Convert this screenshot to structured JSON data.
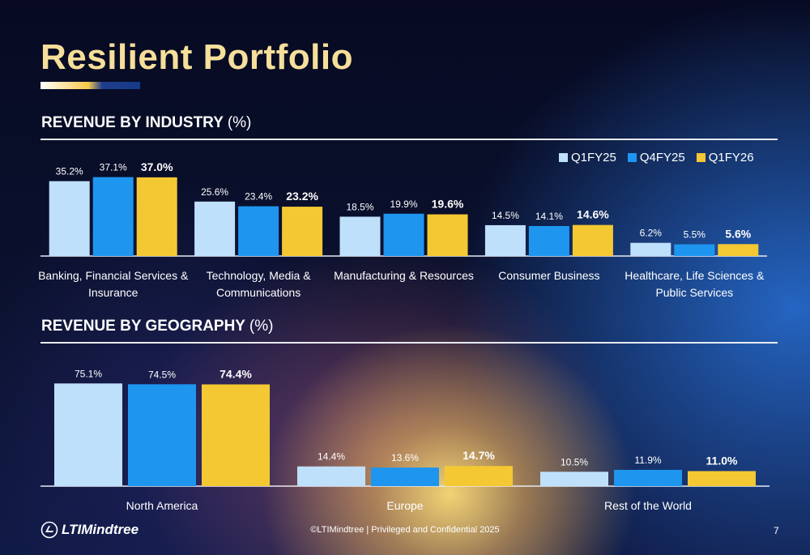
{
  "title": "Resilient Portfolio",
  "colors": {
    "title": "#f6df9a",
    "Q1FY25": "#bfe0fb",
    "Q4FY25": "#1e96f0",
    "Q1FY26": "#f4c832"
  },
  "legend": [
    "Q1FY25",
    "Q4FY25",
    "Q1FY26"
  ],
  "industry_section": {
    "title": "REVENUE BY INDUSTRY",
    "unit": "(%)"
  },
  "geography_section": {
    "title": "REVENUE BY GEOGRAPHY",
    "unit": "(%)"
  },
  "footer": {
    "logo_text": "LTIMindtree",
    "copyright": "©LTIMindtree | Privileged and Confidential 2025",
    "page_number": "7"
  },
  "chart_data": [
    {
      "type": "bar",
      "id": "industry",
      "categories": [
        [
          "Banking, Financial Services &",
          "Insurance"
        ],
        [
          "Technology, Media &",
          "Communications"
        ],
        [
          "Manufacturing & Resources"
        ],
        [
          "Consumer Business"
        ],
        [
          "Healthcare, Life Sciences &",
          "Public Services"
        ]
      ],
      "series": [
        {
          "name": "Q1FY25",
          "values": [
            35.2,
            25.6,
            18.5,
            14.5,
            6.2
          ],
          "labels": [
            "35.2%",
            "25.6%",
            "18.5%",
            "14.5%",
            "6.2%"
          ]
        },
        {
          "name": "Q4FY25",
          "values": [
            37.1,
            23.4,
            19.9,
            14.1,
            5.5
          ],
          "labels": [
            "37.1%",
            "23.4%",
            "19.9%",
            "14.1%",
            "5.5%"
          ]
        },
        {
          "name": "Q1FY26",
          "values": [
            37.0,
            23.2,
            19.6,
            14.6,
            5.6
          ],
          "labels": [
            "37.0%",
            "23.2%",
            "19.6%",
            "14.6%",
            "5.6%"
          ]
        }
      ],
      "ylim": [
        0,
        40
      ]
    },
    {
      "type": "bar",
      "id": "geography",
      "categories": [
        [
          "North America"
        ],
        [
          "Europe"
        ],
        [
          "Rest of the World"
        ]
      ],
      "series": [
        {
          "name": "Q1FY25",
          "values": [
            75.1,
            14.4,
            10.5
          ],
          "labels": [
            "75.1%",
            "14.4%",
            "10.5%"
          ]
        },
        {
          "name": "Q4FY25",
          "values": [
            74.5,
            13.6,
            11.9
          ],
          "labels": [
            "74.5%",
            "13.6%",
            "11.9%"
          ]
        },
        {
          "name": "Q1FY26",
          "values": [
            74.4,
            14.7,
            11.0
          ],
          "labels": [
            "74.4%",
            "14.7%",
            "11.0%"
          ]
        }
      ],
      "ylim": [
        0,
        80
      ]
    }
  ]
}
